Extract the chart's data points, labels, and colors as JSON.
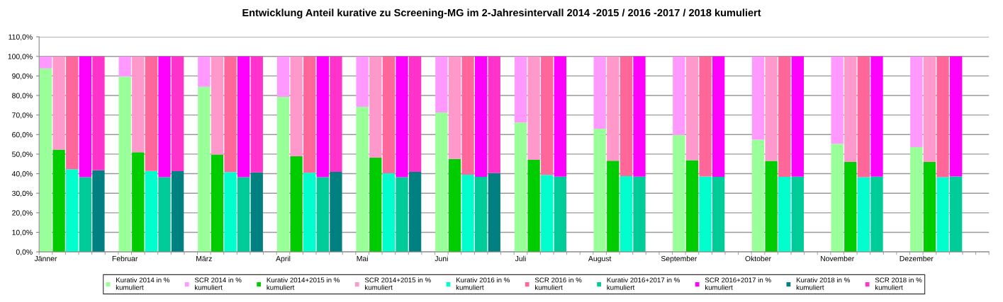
{
  "chart_data": {
    "type": "bar",
    "stacked": true,
    "title": "Entwicklung Anteil kurative zu Screening-MG im 2-Jahresintervall 2014 -2015 / 2016 -2017 / 2018 kumuliert",
    "categories": [
      "Jänner",
      null,
      null,
      null,
      null,
      null,
      "Februar",
      null,
      null,
      null,
      null,
      null,
      "März",
      null,
      null,
      null,
      null,
      null,
      "April",
      null,
      null,
      null,
      null,
      null,
      "Mai",
      null,
      null,
      null,
      null,
      null,
      "Juni",
      null,
      null,
      null,
      null,
      null,
      "Juli",
      null,
      null,
      null,
      null,
      null,
      "August",
      null,
      null,
      null,
      null,
      null,
      "September",
      null,
      null,
      null,
      null,
      null,
      "Oktober",
      null,
      null,
      null,
      null,
      null,
      "November",
      null,
      null,
      null,
      null,
      null,
      "Dezember",
      null,
      null,
      null,
      null,
      null
    ],
    "series": [
      {
        "name": "Kurativ 2014 in % kumuliert",
        "color": "#99ff99",
        "values": [
          93.8,
          null,
          null,
          null,
          null,
          null,
          89.7,
          null,
          null,
          null,
          null,
          null,
          84.4,
          null,
          null,
          null,
          null,
          null,
          79.3,
          null,
          null,
          null,
          null,
          null,
          74.2,
          null,
          null,
          null,
          null,
          null,
          71.3,
          null,
          null,
          null,
          null,
          null,
          66.2,
          null,
          null,
          null,
          null,
          null,
          63.0,
          null,
          null,
          null,
          null,
          null,
          59.7,
          null,
          null,
          null,
          null,
          null,
          57.4,
          null,
          null,
          null,
          null,
          null,
          55.3,
          null,
          null,
          null,
          null,
          null,
          53.6,
          null,
          null,
          null,
          null,
          null
        ]
      },
      {
        "name": "SCR 2014 in % kumuliert",
        "color": "#ff99ff",
        "values": [
          6.2,
          null,
          null,
          null,
          null,
          null,
          10.3,
          null,
          null,
          null,
          null,
          null,
          15.6,
          null,
          null,
          null,
          null,
          null,
          20.7,
          null,
          null,
          null,
          null,
          null,
          25.8,
          null,
          null,
          null,
          null,
          null,
          28.7,
          null,
          null,
          null,
          null,
          null,
          33.8,
          null,
          null,
          null,
          null,
          null,
          37.0,
          null,
          null,
          null,
          null,
          null,
          40.3,
          null,
          null,
          null,
          null,
          null,
          42.6,
          null,
          null,
          null,
          null,
          null,
          44.7,
          null,
          null,
          null,
          null,
          null,
          46.4,
          null,
          null,
          null,
          null,
          null
        ]
      },
      {
        "name": "Kurativ 2014+2015 in % kumuliert",
        "color": "#00cc00",
        "values": [
          null,
          52.3,
          null,
          null,
          null,
          null,
          null,
          51.0,
          null,
          null,
          null,
          null,
          null,
          49.8,
          null,
          null,
          null,
          null,
          null,
          48.9,
          null,
          null,
          null,
          null,
          null,
          48.2,
          null,
          null,
          null,
          null,
          null,
          47.5,
          null,
          null,
          null,
          null,
          null,
          47.1,
          null,
          null,
          null,
          null,
          null,
          46.6,
          null,
          null,
          null,
          null,
          null,
          46.9,
          null,
          null,
          null,
          null,
          null,
          46.5,
          null,
          null,
          null,
          null,
          null,
          46.0,
          null,
          null,
          null,
          null,
          null,
          46.0,
          null,
          null,
          null,
          null
        ]
      },
      {
        "name": "SCR 2014+2015 in % kumuliert",
        "color": "#ff99cc",
        "values": [
          null,
          47.7,
          null,
          null,
          null,
          null,
          null,
          49.0,
          null,
          null,
          null,
          null,
          null,
          50.2,
          null,
          null,
          null,
          null,
          null,
          51.1,
          null,
          null,
          null,
          null,
          null,
          51.8,
          null,
          null,
          null,
          null,
          null,
          52.5,
          null,
          null,
          null,
          null,
          null,
          52.9,
          null,
          null,
          null,
          null,
          null,
          53.4,
          null,
          null,
          null,
          null,
          null,
          53.1,
          null,
          null,
          null,
          null,
          null,
          53.5,
          null,
          null,
          null,
          null,
          null,
          54.0,
          null,
          null,
          null,
          null,
          null,
          54.0,
          null,
          null,
          null,
          null
        ]
      },
      {
        "name": "Kurativ 2016 in % kumuliert",
        "color": "#00ffcc",
        "values": [
          null,
          null,
          42.3,
          null,
          null,
          null,
          null,
          null,
          41.4,
          null,
          null,
          null,
          null,
          null,
          40.8,
          null,
          null,
          null,
          null,
          null,
          40.5,
          null,
          null,
          null,
          null,
          null,
          40.2,
          null,
          null,
          null,
          null,
          null,
          39.5,
          null,
          null,
          null,
          null,
          null,
          39.4,
          null,
          null,
          null,
          null,
          null,
          38.8,
          null,
          null,
          null,
          null,
          null,
          38.6,
          null,
          null,
          null,
          null,
          null,
          38.4,
          null,
          null,
          null,
          null,
          null,
          38.2,
          null,
          null,
          null,
          null,
          null,
          38.2,
          null,
          null,
          null
        ]
      },
      {
        "name": "SCR 2016 in % kumuliert",
        "color": "#ff6699",
        "values": [
          null,
          null,
          57.7,
          null,
          null,
          null,
          null,
          null,
          58.6,
          null,
          null,
          null,
          null,
          null,
          59.2,
          null,
          null,
          null,
          null,
          null,
          59.5,
          null,
          null,
          null,
          null,
          null,
          59.8,
          null,
          null,
          null,
          null,
          null,
          60.5,
          null,
          null,
          null,
          null,
          null,
          60.6,
          null,
          null,
          null,
          null,
          null,
          61.2,
          null,
          null,
          null,
          null,
          null,
          61.4,
          null,
          null,
          null,
          null,
          null,
          61.6,
          null,
          null,
          null,
          null,
          null,
          61.8,
          null,
          null,
          null,
          null,
          null,
          61.8,
          null,
          null,
          null
        ]
      },
      {
        "name": "Kurativ 2016+2017 in % kumuliert",
        "color": "#00cc99",
        "values": [
          null,
          null,
          null,
          38.2,
          null,
          null,
          null,
          null,
          null,
          38.2,
          null,
          null,
          null,
          null,
          null,
          38.2,
          null,
          null,
          null,
          null,
          null,
          38.2,
          null,
          null,
          null,
          null,
          null,
          38.2,
          null,
          null,
          null,
          null,
          null,
          38.4,
          null,
          null,
          null,
          null,
          null,
          38.5,
          null,
          null,
          null,
          null,
          null,
          38.5,
          null,
          null,
          null,
          null,
          null,
          38.4,
          null,
          null,
          null,
          null,
          null,
          38.5,
          null,
          null,
          null,
          null,
          null,
          38.5,
          null,
          null,
          null,
          null,
          null,
          38.6,
          null,
          null
        ]
      },
      {
        "name": "SCR 2016+2017 in % kumuliert",
        "color": "#ff00ff",
        "values": [
          null,
          null,
          null,
          61.8,
          null,
          null,
          null,
          null,
          null,
          61.8,
          null,
          null,
          null,
          null,
          null,
          61.8,
          null,
          null,
          null,
          null,
          null,
          61.8,
          null,
          null,
          null,
          null,
          null,
          61.8,
          null,
          null,
          null,
          null,
          null,
          61.6,
          null,
          null,
          null,
          null,
          null,
          61.5,
          null,
          null,
          null,
          null,
          null,
          61.5,
          null,
          null,
          null,
          null,
          null,
          61.6,
          null,
          null,
          null,
          null,
          null,
          61.5,
          null,
          null,
          null,
          null,
          null,
          61.5,
          null,
          null,
          null,
          null,
          null,
          61.4,
          null,
          null
        ]
      },
      {
        "name": "Kurativ 2018 in % kumuliert",
        "color": "#008080",
        "values": [
          null,
          null,
          null,
          null,
          41.7,
          null,
          null,
          null,
          null,
          null,
          41.3,
          null,
          null,
          null,
          null,
          null,
          40.7,
          null,
          null,
          null,
          null,
          null,
          40.9,
          null,
          null,
          null,
          null,
          null,
          40.9,
          null,
          null,
          null,
          null,
          null,
          40.3,
          null,
          null,
          null,
          null,
          null,
          null,
          null,
          null,
          null,
          null,
          null,
          null,
          null,
          null,
          null,
          null,
          null,
          null,
          null,
          null,
          null,
          null,
          null,
          null,
          null,
          null,
          null,
          null,
          null,
          null,
          null,
          null,
          null,
          null,
          null,
          null,
          null
        ]
      },
      {
        "name": "SCR 2018 in % kumuliert",
        "color": "#ff33cc",
        "values": [
          null,
          null,
          null,
          null,
          58.3,
          null,
          null,
          null,
          null,
          null,
          58.7,
          null,
          null,
          null,
          null,
          null,
          59.3,
          null,
          null,
          null,
          null,
          null,
          59.1,
          null,
          null,
          null,
          null,
          null,
          59.1,
          null,
          null,
          null,
          null,
          null,
          59.7,
          null,
          null,
          null,
          null,
          null,
          null,
          null,
          null,
          null,
          null,
          null,
          null,
          null,
          null,
          null,
          null,
          null,
          null,
          null,
          null,
          null,
          null,
          null,
          null,
          null,
          null,
          null,
          null,
          null,
          null,
          null,
          null,
          null,
          null,
          null,
          null,
          null
        ]
      }
    ],
    "ylim": [
      0,
      110
    ],
    "yticks": [
      {
        "value": 0,
        "label": "0,0%"
      },
      {
        "value": 10,
        "label": "10,0%"
      },
      {
        "value": 20,
        "label": "20,0%"
      },
      {
        "value": 30,
        "label": "30,0%"
      },
      {
        "value": 40,
        "label": "40,0%"
      },
      {
        "value": 50,
        "label": "50,0%"
      },
      {
        "value": 60,
        "label": "60,0%"
      },
      {
        "value": 70,
        "label": "70,0%"
      },
      {
        "value": 80,
        "label": "80,0%"
      },
      {
        "value": 90,
        "label": "90,0%"
      },
      {
        "value": 100,
        "label": "100,0%"
      },
      {
        "value": 110,
        "label": "110,0%"
      }
    ],
    "grid": "y",
    "legend": "bottom"
  }
}
